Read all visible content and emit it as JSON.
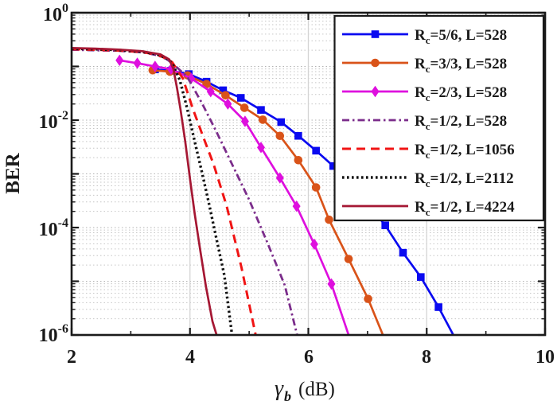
{
  "figure": {
    "background": "#ffffff",
    "axis_color": "#1a1a1a",
    "grid_minor_color": "#c6c6c6",
    "grid_decade_color": "#b2b2b2",
    "grid_vertical_color": "#d4d4d4",
    "legend_border_color": "#1a1a1a",
    "legend_background": "#ffffff"
  },
  "chart_data": {
    "type": "line",
    "title": "",
    "x_axis": {
      "label_symbol": "γ",
      "label_subscript": "b",
      "label_unit": "(dB)",
      "range": [
        2,
        10
      ],
      "major_ticks": [
        2,
        4,
        6,
        8,
        10
      ],
      "tick_labels": [
        "2",
        "4",
        "6",
        "8",
        "10"
      ],
      "minor_ticks": [
        3,
        5,
        7,
        9
      ],
      "vertical_grid_at": [
        4,
        6,
        8
      ]
    },
    "y_axis": {
      "label": "BER",
      "base": "10",
      "scale": "log",
      "range_exponents": [
        0,
        -6
      ],
      "tick_exponents": [
        "0",
        "-2",
        "-4",
        "-6"
      ],
      "minor_multiples": [
        0.9,
        0.8,
        0.7,
        0.6,
        0.5,
        0.4,
        0.3,
        0.2
      ]
    },
    "grid": "log-minor-dotted",
    "legend_position": "upper-right",
    "series": [
      {
        "label": {
          "prefix": "R",
          "sub": "c",
          "rest": "=5/6, L=528"
        },
        "color": "#0a0af0",
        "line_style": "solid",
        "marker": "square",
        "points": [
          [
            3.41,
            0.088
          ],
          [
            3.68,
            0.083
          ],
          [
            3.98,
            0.072
          ],
          [
            4.28,
            0.052
          ],
          [
            4.56,
            0.036
          ],
          [
            4.86,
            0.026
          ],
          [
            5.2,
            0.0155
          ],
          [
            5.54,
            0.0092
          ],
          [
            5.83,
            0.0051
          ],
          [
            6.13,
            0.0027
          ],
          [
            6.42,
            0.0014
          ],
          [
            6.72,
            0.00065
          ],
          [
            7.0,
            0.00028
          ],
          [
            7.3,
            0.00011
          ],
          [
            7.6,
            3.4e-05
          ],
          [
            7.9,
            1.2e-05
          ],
          [
            8.2,
            3.3e-06
          ],
          [
            8.45,
            1e-06
          ]
        ]
      },
      {
        "label": {
          "prefix": "R",
          "sub": "c",
          "rest": "=3/3, L=528"
        },
        "color": "#d95319",
        "line_style": "solid",
        "marker": "circle",
        "points": [
          [
            3.37,
            0.085
          ],
          [
            3.66,
            0.08
          ],
          [
            3.96,
            0.068
          ],
          [
            4.28,
            0.047
          ],
          [
            4.6,
            0.029
          ],
          [
            4.92,
            0.017
          ],
          [
            5.23,
            0.0102
          ],
          [
            5.52,
            0.0051
          ],
          [
            5.83,
            0.0018
          ],
          [
            6.13,
            0.00056
          ],
          [
            6.35,
            0.00014
          ],
          [
            6.68,
            2.6e-05
          ],
          [
            7.01,
            4.7e-06
          ],
          [
            7.26,
            1e-06
          ]
        ]
      },
      {
        "label": {
          "prefix": "R",
          "sub": "c",
          "rest": "=2/3, L=528"
        },
        "color": "#de0fde",
        "line_style": "solid",
        "marker": "diamond",
        "points": [
          [
            2.81,
            0.13
          ],
          [
            3.11,
            0.115
          ],
          [
            3.41,
            0.1
          ],
          [
            3.68,
            0.089
          ],
          [
            4.02,
            0.06
          ],
          [
            4.35,
            0.034
          ],
          [
            4.64,
            0.02
          ],
          [
            4.93,
            0.0095
          ],
          [
            5.2,
            0.0031
          ],
          [
            5.52,
            0.00084
          ],
          [
            5.8,
            0.00025
          ],
          [
            6.1,
            4.9e-05
          ],
          [
            6.39,
            8.9e-06
          ],
          [
            6.68,
            1e-06
          ]
        ]
      },
      {
        "label": {
          "prefix": "R",
          "sub": "c",
          "rest": "=1/2, L=528"
        },
        "color": "#7b2d8b",
        "line_style": "dashdot",
        "marker": "none",
        "points": [
          [
            2.0,
            0.205
          ],
          [
            2.4,
            0.2
          ],
          [
            2.8,
            0.195
          ],
          [
            3.2,
            0.182
          ],
          [
            3.45,
            0.162
          ],
          [
            3.6,
            0.138
          ],
          [
            3.7,
            0.115
          ],
          [
            3.95,
            0.065
          ],
          [
            4.2,
            0.021
          ],
          [
            4.45,
            0.006
          ],
          [
            4.7,
            0.0016
          ],
          [
            5.0,
            0.00033
          ],
          [
            5.3,
            5.5e-05
          ],
          [
            5.6,
            8.5e-06
          ],
          [
            5.81,
            1e-06
          ]
        ]
      },
      {
        "label": {
          "prefix": "R",
          "sub": "c",
          "rest": "=1/2, L=1056"
        },
        "color": "#f01414",
        "line_style": "dashed",
        "marker": "none",
        "points": [
          [
            2.0,
            0.21
          ],
          [
            2.4,
            0.205
          ],
          [
            2.8,
            0.198
          ],
          [
            3.2,
            0.185
          ],
          [
            3.45,
            0.165
          ],
          [
            3.6,
            0.14
          ],
          [
            3.7,
            0.12
          ],
          [
            3.88,
            0.06
          ],
          [
            4.05,
            0.016
          ],
          [
            4.22,
            0.005
          ],
          [
            4.4,
            0.0015
          ],
          [
            4.62,
            0.00025
          ],
          [
            4.87,
            1.8e-05
          ],
          [
            5.11,
            1e-06
          ]
        ]
      },
      {
        "label": {
          "prefix": "R",
          "sub": "c",
          "rest": "=1/2, L=2112"
        },
        "color": "#111111",
        "line_style": "dotted",
        "marker": "none",
        "points": [
          [
            2.0,
            0.215
          ],
          [
            2.4,
            0.21
          ],
          [
            2.8,
            0.202
          ],
          [
            3.2,
            0.188
          ],
          [
            3.45,
            0.168
          ],
          [
            3.6,
            0.143
          ],
          [
            3.7,
            0.115
          ],
          [
            3.83,
            0.055
          ],
          [
            3.95,
            0.017
          ],
          [
            4.08,
            0.004
          ],
          [
            4.2,
            0.0011
          ],
          [
            4.32,
            0.00028
          ],
          [
            4.45,
            6e-05
          ],
          [
            4.58,
            1.3e-05
          ],
          [
            4.71,
            1e-06
          ]
        ]
      },
      {
        "label": {
          "prefix": "R",
          "sub": "c",
          "rest": "=1/2, L=4224"
        },
        "color": "#a51733",
        "line_style": "solid",
        "marker": "none",
        "points": [
          [
            2.0,
            0.22
          ],
          [
            2.4,
            0.215
          ],
          [
            2.8,
            0.206
          ],
          [
            3.2,
            0.192
          ],
          [
            3.5,
            0.168
          ],
          [
            3.65,
            0.135
          ],
          [
            3.72,
            0.09
          ],
          [
            3.78,
            0.04
          ],
          [
            3.84,
            0.016
          ],
          [
            3.92,
            0.004
          ],
          [
            4.0,
            0.0008
          ],
          [
            4.08,
            0.00018
          ],
          [
            4.17,
            4e-05
          ],
          [
            4.27,
            8e-06
          ],
          [
            4.38,
            1.8e-06
          ],
          [
            4.45,
            1e-06
          ]
        ]
      }
    ]
  }
}
